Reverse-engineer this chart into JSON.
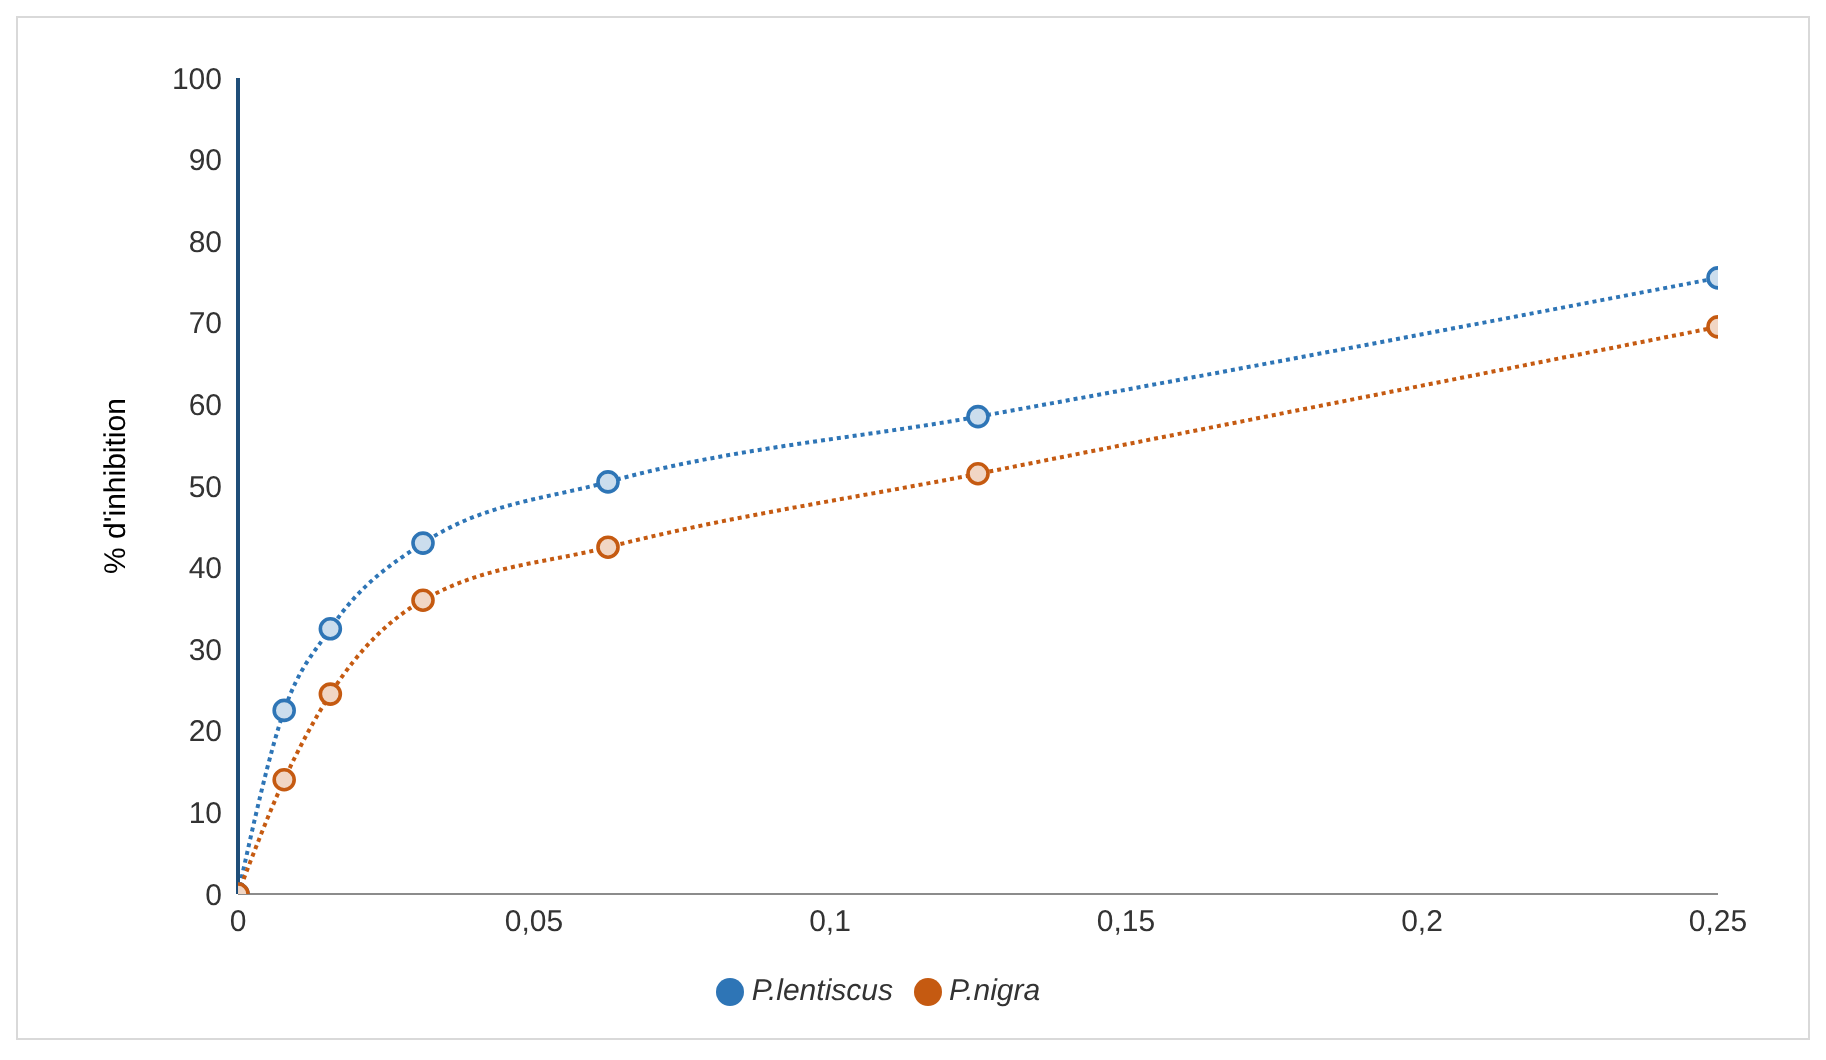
{
  "chart_data": {
    "type": "line",
    "ylabel": "% d'inhibition",
    "x": [
      0,
      0.0078,
      0.0156,
      0.03125,
      0.0625,
      0.125,
      0.25
    ],
    "series": [
      {
        "name": "P.lentiscus",
        "color": "#2e75b6",
        "values": [
          0,
          22.5,
          32.5,
          43,
          50.5,
          58.5,
          75.5
        ]
      },
      {
        "name": "P.nigra",
        "color": "#c55a11",
        "values": [
          0,
          14,
          24.5,
          36,
          42.5,
          51.5,
          69.5
        ]
      }
    ],
    "xlim": [
      0,
      0.25
    ],
    "xticks": [
      0,
      {
        "value": 0.05,
        "label": "0,05"
      },
      {
        "value": 0.1,
        "label": "0,1"
      },
      {
        "value": 0.15,
        "label": "0,15"
      },
      {
        "value": 0.2,
        "label": "0,2"
      },
      {
        "value": 0.25,
        "label": "0,25"
      }
    ],
    "ylim": [
      0,
      100
    ],
    "yticks": [
      0,
      10,
      20,
      30,
      40,
      50,
      60,
      70,
      80,
      90,
      100
    ],
    "legend": "bottom",
    "marker": "circle",
    "line_style": "dotted"
  }
}
